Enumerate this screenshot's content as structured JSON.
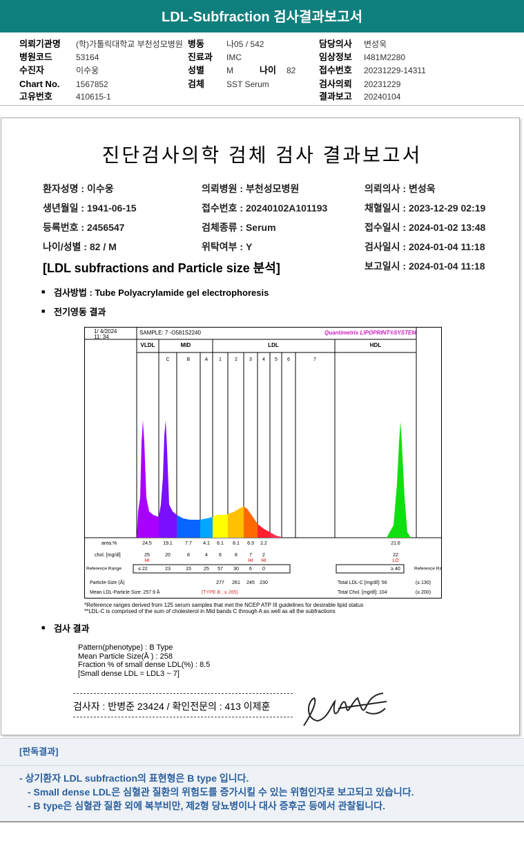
{
  "header": {
    "title": "LDL-Subfraction 검사결과보고서"
  },
  "info": {
    "rows": [
      [
        {
          "label": "의뢰기관명",
          "value": "(학)가톨릭대학교 부천성모병원"
        },
        {
          "label": "병동",
          "value": "나05 / 542"
        },
        {
          "label": "담당의사",
          "value": "변성욱"
        }
      ],
      [
        {
          "label": "병원코드",
          "value": "53164"
        },
        {
          "label": "진료과",
          "value": "IMC"
        },
        {
          "label": "임상정보",
          "value": "I481M2280"
        }
      ],
      [
        {
          "label": "수진자",
          "value": "이수웅"
        },
        {
          "label": "성별",
          "value": "M"
        },
        {
          "label": "나이",
          "value": "82"
        },
        {
          "label": "접수번호",
          "value": "20231229-14311"
        }
      ],
      [
        {
          "label": "Chart No.",
          "value": "1567852"
        },
        {
          "label": "검체",
          "value": "SST Serum"
        },
        {
          "label": "검사의뢰",
          "value": "20231229"
        }
      ],
      [
        {
          "label": "고유번호",
          "value": "410615-1"
        },
        {
          "label": "결과보고",
          "value": "20240104"
        }
      ]
    ]
  },
  "report": {
    "title": "진단검사의학 검체 검사 결과보고서",
    "fields": [
      [
        "환자성명 : 이수웅",
        "생년월일 : 1941-06-15",
        "등록번호 : 2456547",
        "나이/성별 : 82 / M"
      ],
      [
        "의뢰병원 : 부천성모병원",
        "접수번호 : 20240102A101193",
        "검체종류 : Serum",
        "위탁여부 : Y"
      ],
      [
        "의뢰의사 : 변성욱",
        "채혈일시 : 2023-12-29 02:19",
        "접수일시 : 2024-01-02 13:48",
        "검사일시 : 2024-01-04 11:18",
        "보고일시 : 2024-01-04 11:18"
      ]
    ],
    "section_title": "[LDL subfractions and Particle size 분석]",
    "method": "검사방법 : Tube Polyacrylamide gel electrophoresis",
    "electrophoresis_heading": "전기영동 결과",
    "result_heading": "검사 결과",
    "results": [
      "Pattern(phenotype) : B Type",
      "Mean Particle Size(Å ) : 258",
      "Fraction % of small dense LDL(%) : 8.5",
      "[Small dense LDL = LDL3 ~ 7]"
    ],
    "signature_line": "검사자 : 반병준  23424  /  확인전문의 : 413 이제훈"
  },
  "lipoprint": {
    "date": "1/ 4/2024",
    "time": "11: 34",
    "sample": "SAMPLE:  7 -O581S2240",
    "brand": "Quantimetrix LIPOPRINT®SYSTEM",
    "groups": [
      "VLDL",
      "MID",
      "LDL",
      "HDL"
    ],
    "bands": [
      "C",
      "B",
      "A",
      "1",
      "2",
      "3",
      "4",
      "5",
      "6",
      "7"
    ],
    "area_label": "area.%",
    "area": [
      24.5,
      19.1,
      7.7,
      4.1,
      6.1,
      8.1,
      6.3,
      2.2
    ],
    "hdl_area": 21.6,
    "chol_label": "chol. [mg/dl]",
    "chol": [
      25,
      20,
      8,
      4,
      6,
      8,
      7,
      2
    ],
    "hdl_chol": 22,
    "flags": [
      "HI",
      null,
      null,
      null,
      null,
      null,
      "HI",
      "HI"
    ],
    "hdl_flag": "LO",
    "ref_label": "Reference Range",
    "ref": [
      "≤ 22",
      23,
      15,
      25,
      57,
      30,
      6,
      0
    ],
    "hdl_ref": "≥ 40",
    "particle_label": "Particle-Size (Å)",
    "sizes": [
      277,
      261,
      245,
      230
    ],
    "total_ldl": "Total LDL-C [mg/dl]: 56",
    "total_ldl_ref": "(≤ 130)",
    "mean_size": "Mean LDL-Particle Size:  257.9 Å",
    "type": "(TYPE B ; ≤ 265)",
    "total_chol": "Total Chol. [mg/dl]: 104",
    "total_chol_ref": "(≤ 200)",
    "footnotes": [
      "*Reference ranges derived from 125 serum samples that met the NCEP ATP III guidelines for desirable lipid status",
      "**LDL-C is comprised of the sum of cholesterol in Mid bands C through A as well as all the subfractions"
    ]
  },
  "judgment": {
    "title": "[판독결과]",
    "lines": [
      "- 상기환자 LDL subfraction의 표현형은 B type 입니다.",
      "-  Small dense LDL은 심혈관 질환의 위험도를 증가시킬 수 있는 위험인자로 보고되고 있습니다.",
      "-  B type은 심혈관 질환 외에 복부비만, 제2형 당뇨병이나 대사 증후군 등에서 관찰됩니다."
    ]
  }
}
